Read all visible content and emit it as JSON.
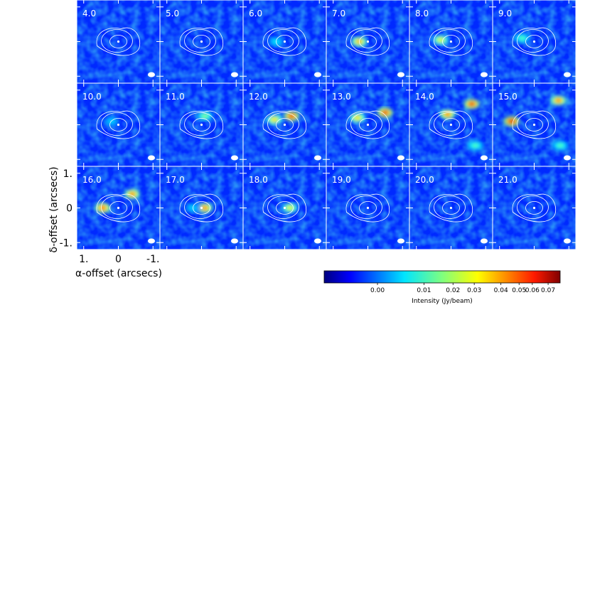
{
  "chart_data": {
    "type": "heatmap",
    "layout": {
      "rows": 3,
      "cols": 6
    },
    "panels": [
      {
        "label": "4.0",
        "peak": 0.012,
        "spots": []
      },
      {
        "label": "5.0",
        "peak": 0.015,
        "spots": []
      },
      {
        "label": "6.0",
        "peak": 0.022,
        "spots": [
          {
            "x": 0.25,
            "y": 0.0,
            "amp": 0.022
          }
        ]
      },
      {
        "label": "7.0",
        "peak": 0.055,
        "spots": [
          {
            "x": 0.25,
            "y": 0.0,
            "amp": 0.055
          }
        ]
      },
      {
        "label": "8.0",
        "peak": 0.045,
        "spots": [
          {
            "x": 0.3,
            "y": 0.05,
            "amp": 0.045
          }
        ]
      },
      {
        "label": "9.0",
        "peak": 0.03,
        "spots": [
          {
            "x": 0.35,
            "y": 0.1,
            "amp": 0.03
          }
        ]
      },
      {
        "label": "10.0",
        "peak": 0.022,
        "spots": [
          {
            "x": 0.2,
            "y": 0.1,
            "amp": 0.02
          }
        ]
      },
      {
        "label": "11.0",
        "peak": 0.035,
        "spots": [
          {
            "x": -0.1,
            "y": 0.25,
            "amp": 0.035
          }
        ]
      },
      {
        "label": "12.0",
        "peak": 0.07,
        "spots": [
          {
            "x": -0.2,
            "y": 0.25,
            "amp": 0.07
          },
          {
            "x": 0.3,
            "y": 0.15,
            "amp": 0.05
          }
        ]
      },
      {
        "label": "13.0",
        "peak": 0.07,
        "spots": [
          {
            "x": -0.5,
            "y": 0.35,
            "amp": 0.07
          },
          {
            "x": 0.3,
            "y": 0.2,
            "amp": 0.05
          }
        ]
      },
      {
        "label": "14.0",
        "peak": 0.07,
        "spots": [
          {
            "x": -0.6,
            "y": 0.6,
            "amp": 0.07
          },
          {
            "x": 0.1,
            "y": 0.3,
            "amp": 0.06
          },
          {
            "x": -0.7,
            "y": -0.6,
            "amp": 0.03
          }
        ]
      },
      {
        "label": "15.0",
        "peak": 0.075,
        "spots": [
          {
            "x": 0.65,
            "y": 0.1,
            "amp": 0.075
          },
          {
            "x": -0.7,
            "y": 0.7,
            "amp": 0.06
          },
          {
            "x": -0.75,
            "y": -0.6,
            "amp": 0.03
          }
        ]
      },
      {
        "label": "16.0",
        "peak": 0.065,
        "spots": [
          {
            "x": 0.45,
            "y": 0.0,
            "amp": 0.065
          },
          {
            "x": -0.4,
            "y": 0.4,
            "amp": 0.06
          }
        ]
      },
      {
        "label": "17.0",
        "peak": 0.06,
        "spots": [
          {
            "x": -0.1,
            "y": 0.0,
            "amp": 0.06
          },
          {
            "x": 0.25,
            "y": 0.0,
            "amp": 0.02
          }
        ]
      },
      {
        "label": "18.0",
        "peak": 0.045,
        "spots": [
          {
            "x": -0.15,
            "y": 0.0,
            "amp": 0.045
          }
        ]
      },
      {
        "label": "19.0",
        "peak": 0.012,
        "spots": []
      },
      {
        "label": "20.0",
        "peak": 0.01,
        "spots": []
      },
      {
        "label": "21.0",
        "peak": 0.01,
        "spots": []
      }
    ],
    "xlabel": "α-offset (arcsecs)",
    "ylabel": "δ-offset (arcsecs)",
    "xticks": [
      "1.",
      "0",
      "-1."
    ],
    "yticks": [
      "1.",
      "0",
      "-1."
    ],
    "xlim": [
      1.2,
      -1.2
    ],
    "ylim": [
      -1.2,
      1.2
    ],
    "colorbar": {
      "label": "Intensity (Jy/beam)",
      "ticks": [
        "0.00",
        "0.01",
        "0.02",
        "0.03",
        "0.04",
        "0.05",
        "0.06",
        "0.07"
      ],
      "range": [
        -0.01,
        0.075
      ],
      "colormap": "jet"
    },
    "contour_color": "#ffffff",
    "grid": false
  }
}
